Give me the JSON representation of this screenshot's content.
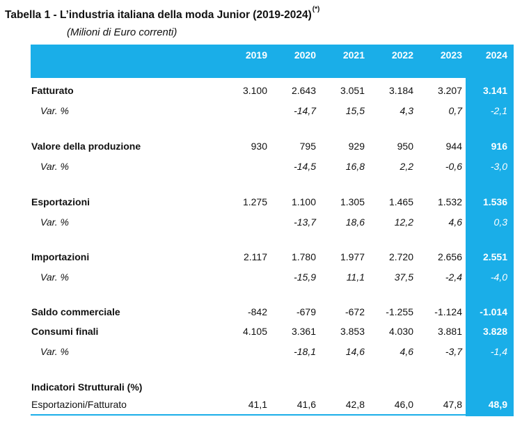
{
  "title": {
    "text": "Tabella 1 - L’industria italiana della moda Junior (2019-2024)",
    "note": "(*)",
    "subtitle": "(Milioni di Euro correnti)"
  },
  "table": {
    "years": [
      "2019",
      "2020",
      "2021",
      "2022",
      "2023",
      "2024"
    ],
    "rows": [
      {
        "label": "Fatturato",
        "values": [
          "3.100",
          "2.643",
          "3.051",
          "3.184",
          "3.207",
          "3.141"
        ]
      },
      {
        "label": "Var. %",
        "values": [
          "",
          "-14,7",
          "15,5",
          "4,3",
          "0,7",
          "-2,1"
        ]
      },
      {
        "label": "Valore della produzione",
        "values": [
          "930",
          "795",
          "929",
          "950",
          "944",
          "916"
        ]
      },
      {
        "label": "Var. %",
        "values": [
          "",
          "-14,5",
          "16,8",
          "2,2",
          "-0,6",
          "-3,0"
        ]
      },
      {
        "label": "Esportazioni",
        "values": [
          "1.275",
          "1.100",
          "1.305",
          "1.465",
          "1.532",
          "1.536"
        ]
      },
      {
        "label": "Var. %",
        "values": [
          "",
          "-13,7",
          "18,6",
          "12,2",
          "4,6",
          "0,3"
        ]
      },
      {
        "label": "Importazioni",
        "values": [
          "2.117",
          "1.780",
          "1.977",
          "2.720",
          "2.656",
          "2.551"
        ]
      },
      {
        "label": "Var. %",
        "values": [
          "",
          "-15,9",
          "11,1",
          "37,5",
          "-2,4",
          "-4,0"
        ]
      },
      {
        "label": "Saldo commerciale",
        "values": [
          "-842",
          "-679",
          "-672",
          "-1.255",
          "-1.124",
          "-1.014"
        ]
      },
      {
        "label": "Consumi finali",
        "values": [
          "4.105",
          "3.361",
          "3.853",
          "4.030",
          "3.881",
          "3.828"
        ]
      },
      {
        "label": "Var. %",
        "values": [
          "",
          "-18,1",
          "14,6",
          "4,6",
          "-3,7",
          "-1,4"
        ]
      },
      {
        "label": "Indicatori Strutturali (%)",
        "values": [
          "",
          "",
          "",
          "",
          "",
          ""
        ]
      },
      {
        "label": "Esportazioni/Fatturato",
        "values": [
          "41,1",
          "41,6",
          "42,8",
          "46,0",
          "47,8",
          "48,9"
        ]
      }
    ]
  },
  "colors": {
    "accent": "#1aaee8",
    "highlight_text": "#ffffff"
  }
}
